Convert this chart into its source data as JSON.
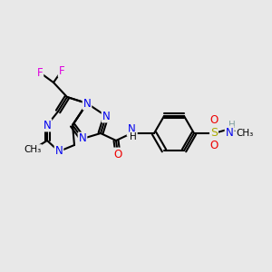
{
  "background_color": "#e8e8e8",
  "bond_color": "#000000",
  "bond_lw": 1.5,
  "atom_colors": {
    "N": "#0000ee",
    "O": "#ee0000",
    "F": "#dd00dd",
    "S": "#aaaa00",
    "C": "#000000",
    "H": "#7f9f9f"
  },
  "font_size": 8.5
}
